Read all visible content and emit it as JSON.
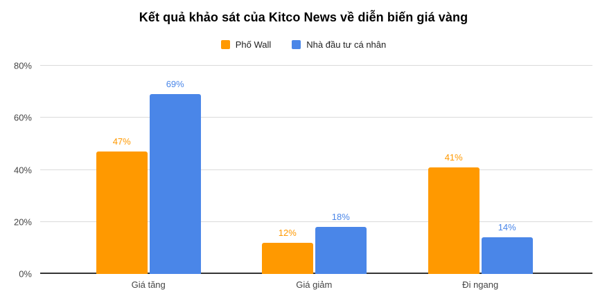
{
  "title": "Kết quả khảo sát của Kitco News về diễn biến giá vàng",
  "chart_data": {
    "type": "bar",
    "title": "Kết quả khảo sát của Kitco News về diễn biến giá vàng",
    "categories": [
      "Giá tăng",
      "Giá giảm",
      "Đi ngang"
    ],
    "series": [
      {
        "name": "Phố Wall",
        "color": "#FF9900",
        "values": [
          47,
          12,
          41
        ]
      },
      {
        "name": "Nhà đầu tư cá nhân",
        "color": "#4A86E8",
        "values": [
          69,
          18,
          14
        ]
      }
    ],
    "y_ticks": [
      "0%",
      "20%",
      "40%",
      "60%",
      "80%"
    ],
    "ylim": [
      0,
      80
    ],
    "grid": true,
    "legend_position": "top",
    "data_labels": true,
    "data_label_suffix": "%"
  },
  "colors": {
    "background": "#ffffff",
    "gridline": "#dadada",
    "axis_line": "#333333",
    "axis_text": "#444444",
    "title_text": "#000000",
    "series_orange": "#FF9900",
    "series_blue": "#4A86E8"
  }
}
